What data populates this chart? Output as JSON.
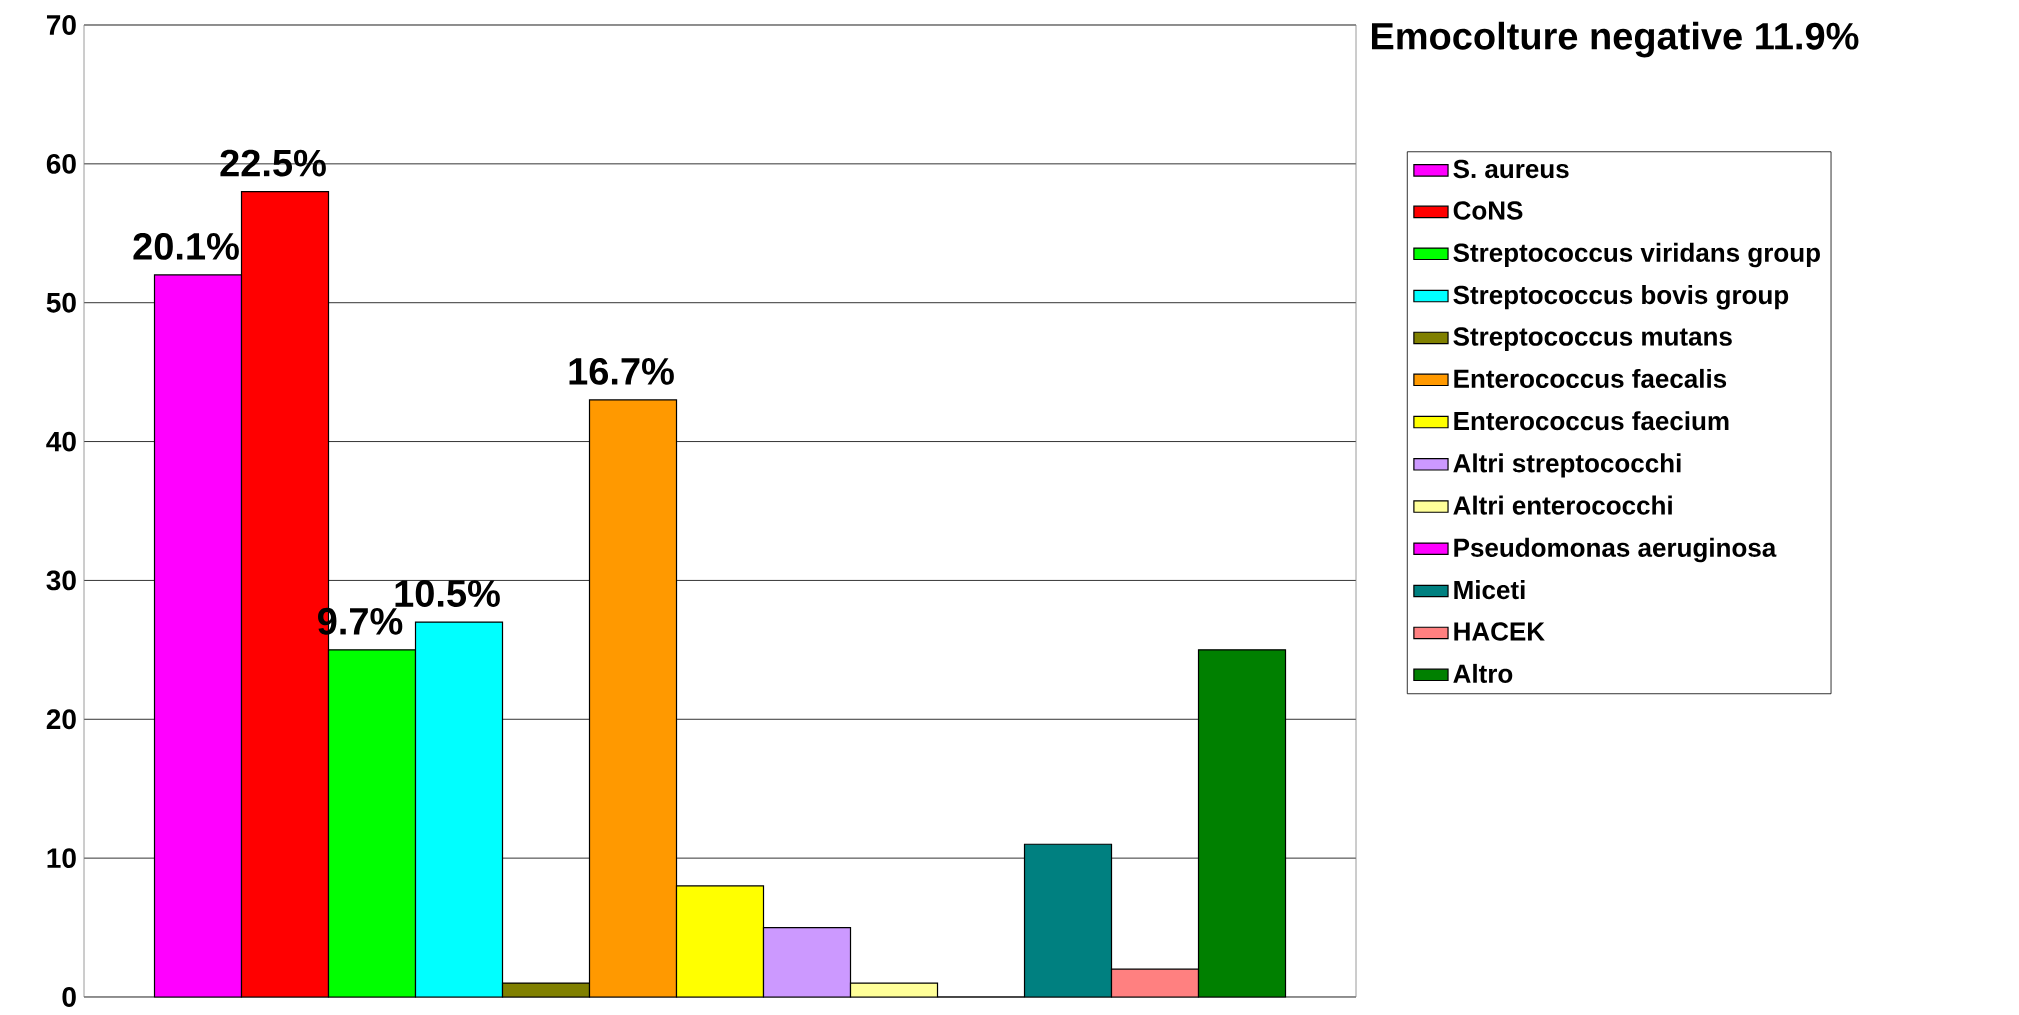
{
  "chart_data": {
    "type": "bar",
    "categories": [
      null
    ],
    "annotations": [
      "Emocolture negative 11.9%",
      {
        "text": "20.1%",
        "y": 52
      },
      {
        "text": "22.5%",
        "y": 58
      },
      {
        "text": "9.7%",
        "y": 25
      },
      {
        "text": "10.5%",
        "y": 27
      },
      {
        "text": "16.7%",
        "y": 43
      }
    ],
    "ylim": [
      0,
      70
    ],
    "yticks": [
      0,
      10,
      20,
      30,
      40,
      50,
      60,
      70
    ],
    "grid": "y",
    "legend": "right",
    "series": [
      {
        "name": "S. aureus",
        "color": "#ff00ff",
        "values": [
          52
        ]
      },
      {
        "name": "CoNS",
        "color": "#ff0000",
        "values": [
          58
        ]
      },
      {
        "name": "Streptococcus viridans group",
        "color": "#00ff00",
        "values": [
          25
        ]
      },
      {
        "name": "Streptococcus bovis group",
        "color": "#00ffff",
        "values": [
          27
        ]
      },
      {
        "name": "Streptococcus mutans",
        "color": "#808000",
        "values": [
          1
        ]
      },
      {
        "name": "Enterococcus faecalis",
        "color": "#ff9900",
        "values": [
          43
        ]
      },
      {
        "name": "Enterococcus faecium",
        "color": "#ffff00",
        "values": [
          8
        ]
      },
      {
        "name": "Altri streptococchi",
        "color": "#cc99ff",
        "values": [
          5
        ]
      },
      {
        "name": "Altri enterococchi",
        "color": "#ffff99",
        "values": [
          1
        ]
      },
      {
        "name": "Pseudomonas aeruginosa",
        "color": "#ff00ff",
        "values": [
          0
        ]
      },
      {
        "name": "Miceti",
        "color": "#008080",
        "values": [
          11
        ]
      },
      {
        "name": "HACEK",
        "color": "#ff8080",
        "values": [
          2
        ]
      },
      {
        "name": "Altro",
        "color": "#008000",
        "values": [
          25
        ]
      }
    ]
  }
}
